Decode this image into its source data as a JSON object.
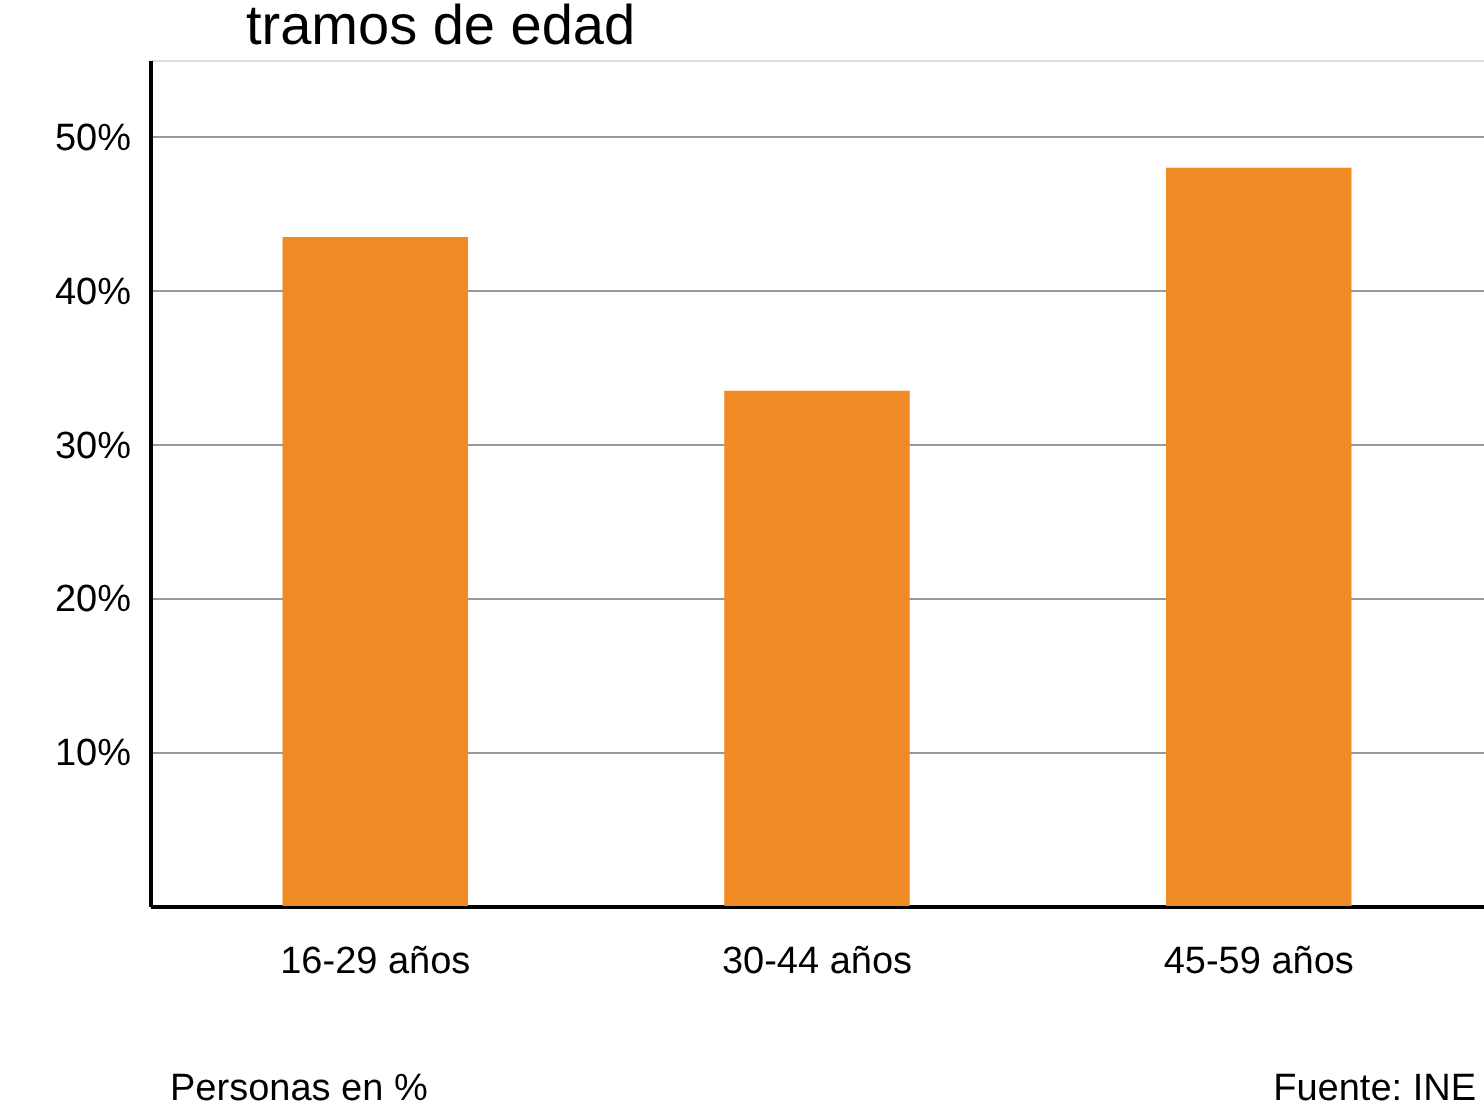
{
  "chart_data": {
    "type": "bar",
    "title": "tramos de edad",
    "categories": [
      "16-29 años",
      "30-44 años",
      "45-59 años"
    ],
    "values": [
      43.5,
      33.5,
      48
    ],
    "color": "#ef8a25",
    "ylim": [
      0,
      55
    ],
    "yticks": [
      {
        "value": 0,
        "label": null
      },
      {
        "value": 10,
        "label": "10%"
      },
      {
        "value": 20,
        "label": "20%"
      },
      {
        "value": 30,
        "label": "30%"
      },
      {
        "value": 40,
        "label": "40%"
      },
      {
        "value": 50,
        "label": "50%"
      }
    ],
    "grid": "y",
    "annotations": [
      "Personas en %",
      "Fuente: INE"
    ]
  }
}
